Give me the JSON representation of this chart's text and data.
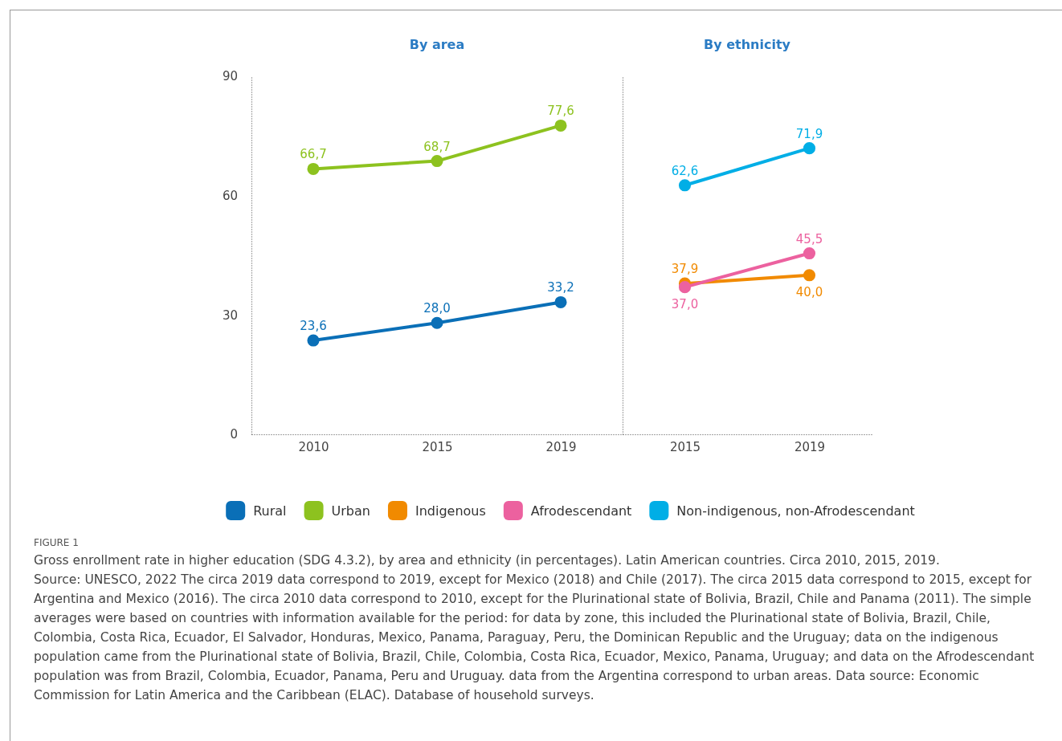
{
  "chart_data": [
    {
      "type": "line",
      "title": "By area",
      "categories": [
        "2010",
        "2015",
        "2019"
      ],
      "ylim": [
        0,
        90
      ],
      "yticks": [
        0,
        30,
        60,
        90
      ],
      "grid": false,
      "marker": "circle",
      "line_style": "solid",
      "legend": "bottom",
      "series": [
        {
          "name": "Rural",
          "color": "#0a6fb7",
          "values": [
            23.6,
            28.0,
            33.2
          ],
          "value_labels": [
            "23,6",
            "28,0",
            "33,2"
          ]
        },
        {
          "name": "Urban",
          "color": "#8dc21f",
          "values": [
            66.7,
            68.7,
            77.6
          ],
          "value_labels": [
            "66,7",
            "68,7",
            "77,6"
          ]
        }
      ],
      "annotations": [
        "FIGURE 1",
        "Gross enrollment rate in higher education (SDG 4.3.2), by area and ethnicity (in percentages). Latin American countries. Circa 2010, 2015, 2019.",
        "Source: UNESCO, 2022 The circa 2019 data correspond to 2019, except for Mexico (2018) and Chile (2017). The circa 2015 data correspond to 2015, except for Argentina and Mexico (2016). The circa 2010 data correspond to 2010, except for the Plurinational state of Bolivia, Brazil, Chile and Panama (2011). The simple averages were based on countries with information available for the period: for data by zone, this included the Plurinational state of Bolivia, Brazil, Chile, Colombia, Costa Rica, Ecuador, El Salvador, Honduras, Mexico, Panama, Paraguay, Peru, the Dominican Republic and the Uruguay; data on the indigenous population came from the Plurinational state of Bolivia, Brazil, Chile, Colombia, Costa Rica, Ecuador, Mexico, Panama, Uruguay; and data on the Afrodescendant population was from Brazil, Colombia, Ecuador, Panama, Peru and Uruguay. data from the Argentina correspond to urban areas. Data source: Economic Commission for Latin America and the Caribbean (ELAC). Database of household surveys."
      ]
    },
    {
      "type": "line",
      "title": "By ethnicity",
      "categories": [
        "2015",
        "2019"
      ],
      "ylim": [
        0,
        90
      ],
      "yticks": [
        0,
        30,
        60,
        90
      ],
      "tick_labels": "x",
      "grid": false,
      "marker": "circle",
      "line_style": "solid",
      "legend": "bottom",
      "series": [
        {
          "name": "Indigenous",
          "color": "#f18a00",
          "values": [
            37.9,
            40.0
          ],
          "value_labels": [
            "37,9",
            "40,0"
          ]
        },
        {
          "name": "Afrodescendant",
          "color": "#ec619f",
          "values": [
            37.0,
            45.5
          ],
          "value_labels": [
            "37,0",
            "45,5"
          ]
        },
        {
          "name": "Non-indigenous, non-Afrodescendant",
          "color": "#00aee6",
          "values": [
            62.6,
            71.9
          ],
          "value_labels": [
            "62,6",
            "71,9"
          ]
        }
      ]
    }
  ]
}
